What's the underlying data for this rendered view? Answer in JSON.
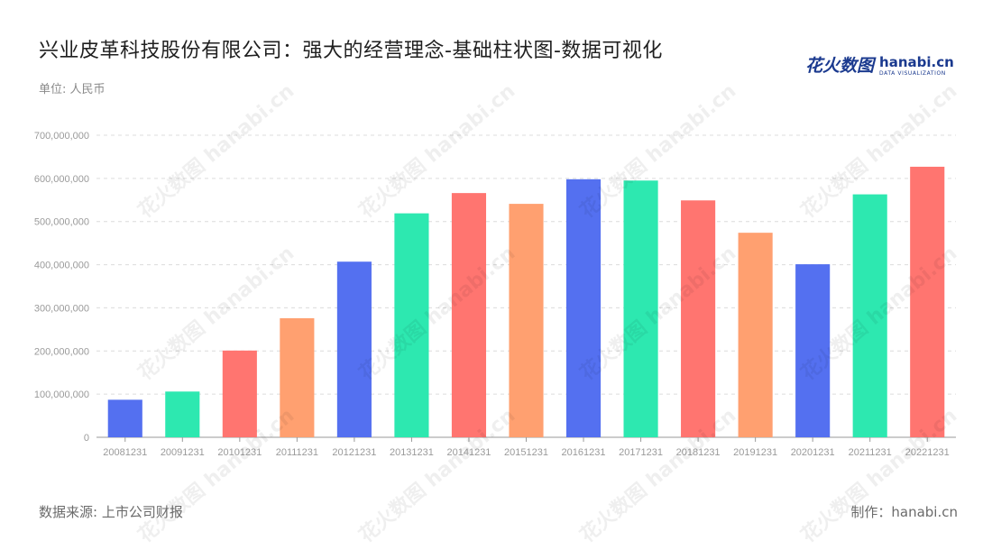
{
  "title": "兴业皮革科技股份有限公司：强大的经营理念-基础柱状图-数据可视化",
  "unit": "单位: 人民币",
  "logo": {
    "cn": "花火数图",
    "en": "hanabi.cn",
    "en_sub": "DATA VISUALIZATION"
  },
  "watermark": "花火数图 hanabi.cn",
  "footer": {
    "source": "数据来源: 上市公司财报",
    "credit": "制作：hanabi.cn"
  },
  "colors": [
    "#5470f0",
    "#2de8b0",
    "#ff7570",
    "#ffa070"
  ],
  "chart_data": {
    "type": "bar",
    "categories": [
      "20081231",
      "20091231",
      "20101231",
      "20111231",
      "20121231",
      "20131231",
      "20141231",
      "20151231",
      "20161231",
      "20171231",
      "20181231",
      "20191231",
      "20201231",
      "20211231",
      "20221231"
    ],
    "values": [
      87000000,
      106000000,
      201000000,
      276000000,
      407000000,
      519000000,
      566000000,
      541000000,
      598000000,
      595000000,
      549000000,
      474000000,
      401000000,
      563000000,
      627000000
    ],
    "ylim": [
      0,
      700000000
    ],
    "yticks": [
      0,
      100000000,
      200000000,
      300000000,
      400000000,
      500000000,
      600000000,
      700000000
    ],
    "ytick_labels": [
      "0",
      "100,000,000",
      "200,000,000",
      "300,000,000",
      "400,000,000",
      "500,000,000",
      "600,000,000",
      "700,000,000"
    ],
    "grid": true
  }
}
